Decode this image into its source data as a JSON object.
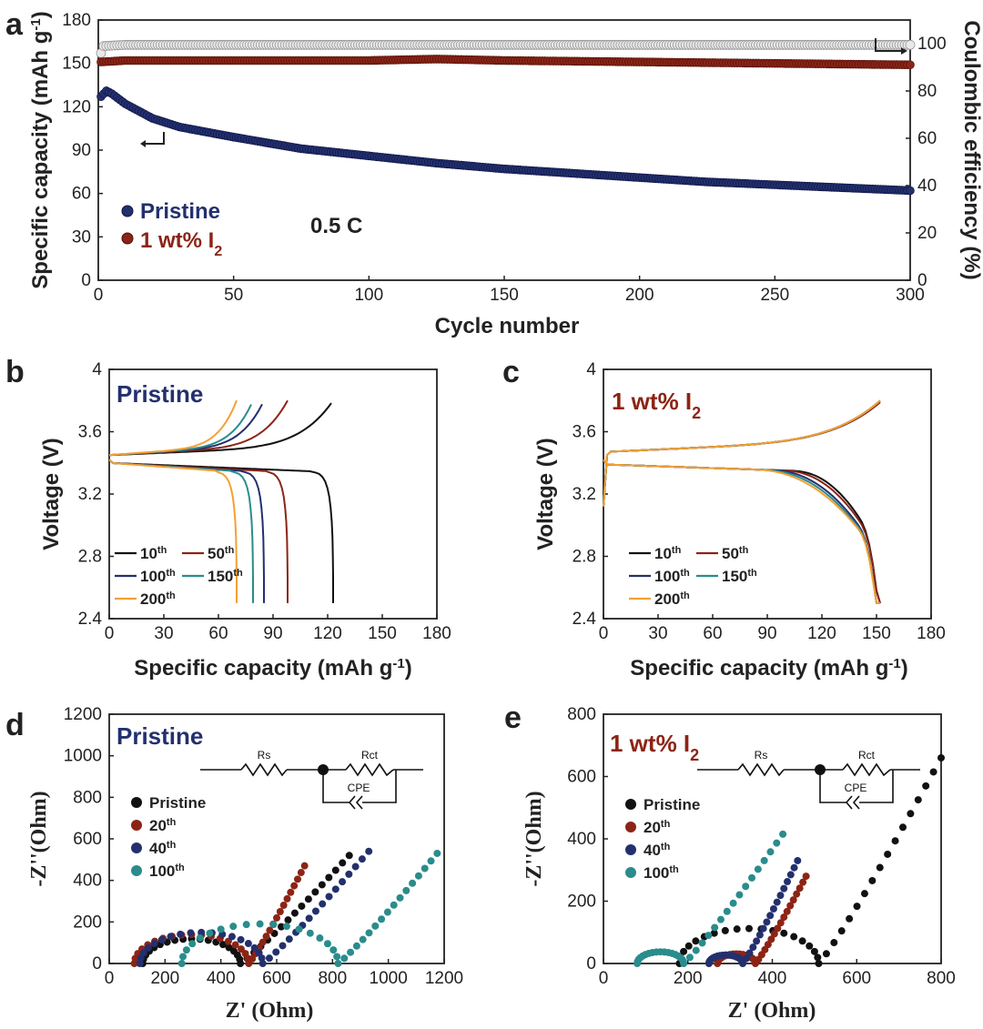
{
  "panels": {
    "a": {
      "letter": "a",
      "xlabel": "Cycle number",
      "ylabel_left": "Specific capacity (mAh g-1)",
      "ylabel_right": "Coulombic efficiency (%)",
      "rate_label": "0.5 C",
      "legend": [
        {
          "label": "Pristine",
          "color": "#23306e"
        },
        {
          "label": "1 wt% I2",
          "color": "#8c2416"
        }
      ]
    },
    "b": {
      "letter": "b",
      "sample": "Pristine",
      "sample_color": "#23306e",
      "xlabel": "Specific capacity (mAh g-1)",
      "ylabel": "Voltage (V)"
    },
    "c": {
      "letter": "c",
      "sample": "1 wt% I2",
      "sample_color": "#8c2416",
      "xlabel": "Specific capacity (mAh g-1)",
      "ylabel": "Voltage (V)"
    },
    "d": {
      "letter": "d",
      "sample": "Pristine",
      "sample_color": "#23306e",
      "xlabel": "Z' (Ohm)",
      "ylabel": "-Z''(Ohm)"
    },
    "e": {
      "letter": "e",
      "sample": "1 wt% I2",
      "sample_color": "#8c2416",
      "xlabel": "Z' (Ohm)",
      "ylabel": "-Z''(Ohm)"
    }
  },
  "circuit": {
    "rs": "Rs",
    "rct": "Rct",
    "cpe": "CPE"
  },
  "chart_data": [
    {
      "panel": "a",
      "type": "scatter",
      "title": "",
      "xlabel": "Cycle number",
      "ylabel": "Specific capacity (mAh g-1)",
      "y2label": "Coulombic efficiency (%)",
      "xlim": [
        0,
        300
      ],
      "ylim": [
        0,
        180
      ],
      "y2lim": [
        0,
        110
      ],
      "xticks": [
        0,
        50,
        100,
        150,
        200,
        250,
        300
      ],
      "yticks": [
        0,
        30,
        60,
        90,
        120,
        150,
        180
      ],
      "y2ticks": [
        0,
        20,
        40,
        60,
        80,
        100
      ],
      "annotation": "0.5 C",
      "series": [
        {
          "name": "Pristine capacity",
          "axis": "left",
          "color": "#23306e",
          "x": [
            1,
            3,
            5,
            10,
            20,
            30,
            50,
            75,
            100,
            125,
            150,
            175,
            200,
            225,
            250,
            275,
            300
          ],
          "y": [
            127,
            131,
            129,
            122,
            112,
            106,
            99,
            91,
            86,
            81,
            77,
            74,
            71,
            68,
            66,
            64,
            62
          ]
        },
        {
          "name": "1 wt% I2 capacity",
          "axis": "left",
          "color": "#8c2416",
          "x": [
            1,
            10,
            50,
            100,
            125,
            150,
            200,
            250,
            300
          ],
          "y": [
            151,
            152,
            152,
            152,
            153,
            152,
            151,
            150,
            149
          ]
        },
        {
          "name": "Coulombic efficiency",
          "axis": "right",
          "color": "#9a9a9a",
          "x": [
            1,
            2,
            10,
            100,
            200,
            300
          ],
          "y": [
            96,
            99,
            99.5,
            99.5,
            99.5,
            99.5
          ]
        }
      ],
      "legend": [
        "Pristine",
        "1 wt% I2"
      ]
    },
    {
      "panel": "b",
      "type": "line",
      "xlabel": "Specific capacity (mAh g-1)",
      "ylabel": "Voltage (V)",
      "xlim": [
        0,
        180
      ],
      "ylim": [
        2.4,
        4.0
      ],
      "xticks": [
        0,
        30,
        60,
        90,
        120,
        150,
        180
      ],
      "yticks": [
        2.4,
        2.8,
        3.2,
        3.6,
        4.0
      ],
      "series": [
        {
          "name": "10th",
          "color": "#111111",
          "capacity": 123
        },
        {
          "name": "50th",
          "color": "#8c2416",
          "capacity": 98
        },
        {
          "name": "100th",
          "color": "#23306e",
          "capacity": 85
        },
        {
          "name": "150th",
          "color": "#2a8c8c",
          "capacity": 79
        },
        {
          "name": "200th",
          "color": "#f5a033",
          "capacity": 70
        }
      ]
    },
    {
      "panel": "c",
      "type": "line",
      "xlabel": "Specific capacity (mAh g-1)",
      "ylabel": "Voltage (V)",
      "xlim": [
        0,
        180
      ],
      "ylim": [
        2.4,
        4.0
      ],
      "xticks": [
        0,
        30,
        60,
        90,
        120,
        150,
        180
      ],
      "yticks": [
        2.4,
        2.8,
        3.2,
        3.6,
        4.0
      ],
      "series": [
        {
          "name": "10th",
          "color": "#111111",
          "capacity": 153
        },
        {
          "name": "50th",
          "color": "#8c2416",
          "capacity": 153
        },
        {
          "name": "100th",
          "color": "#23306e",
          "capacity": 152
        },
        {
          "name": "150th",
          "color": "#2a8c8c",
          "capacity": 152
        },
        {
          "name": "200th",
          "color": "#f5a033",
          "capacity": 152
        }
      ]
    },
    {
      "panel": "d",
      "type": "scatter",
      "xlabel": "Z' (Ohm)",
      "ylabel": "-Z''(Ohm)",
      "xlim": [
        0,
        1200
      ],
      "ylim": [
        0,
        1200
      ],
      "xticks": [
        0,
        200,
        400,
        600,
        800,
        1000,
        1200
      ],
      "yticks": [
        0,
        200,
        400,
        600,
        800,
        1000,
        1200
      ],
      "series": [
        {
          "name": "Pristine",
          "color": "#111111",
          "Rs": 120,
          "Rct": 350,
          "tail_end": [
            860,
            520
          ]
        },
        {
          "name": "20th",
          "color": "#8c2416",
          "Rs": 90,
          "Rct": 410,
          "tail_end": [
            700,
            470
          ]
        },
        {
          "name": "40th",
          "color": "#23306e",
          "Rs": 110,
          "Rct": 440,
          "tail_end": [
            930,
            540
          ]
        },
        {
          "name": "100th",
          "color": "#2a8c8c",
          "Rs": 260,
          "Rct": 560,
          "tail_end": [
            1175,
            530
          ]
        }
      ]
    },
    {
      "panel": "e",
      "type": "scatter",
      "xlabel": "Z' (Ohm)",
      "ylabel": "-Z''(Ohm)",
      "xlim": [
        0,
        800
      ],
      "ylim": [
        0,
        800
      ],
      "xticks": [
        0,
        200,
        400,
        600,
        800
      ],
      "yticks": [
        0,
        200,
        400,
        600,
        800
      ],
      "series": [
        {
          "name": "Pristine",
          "color": "#111111",
          "Rs": 180,
          "Rct": 330,
          "tail_end": [
            800,
            660
          ]
        },
        {
          "name": "20th",
          "color": "#8c2416",
          "Rs": 270,
          "Rct": 90,
          "tail_end": [
            480,
            280
          ]
        },
        {
          "name": "40th",
          "color": "#23306e",
          "Rs": 250,
          "Rct": 80,
          "tail_end": [
            460,
            330
          ]
        },
        {
          "name": "100th",
          "color": "#2a8c8c",
          "Rs": 80,
          "Rct": 110,
          "tail_end": [
            425,
            415
          ]
        }
      ]
    }
  ]
}
